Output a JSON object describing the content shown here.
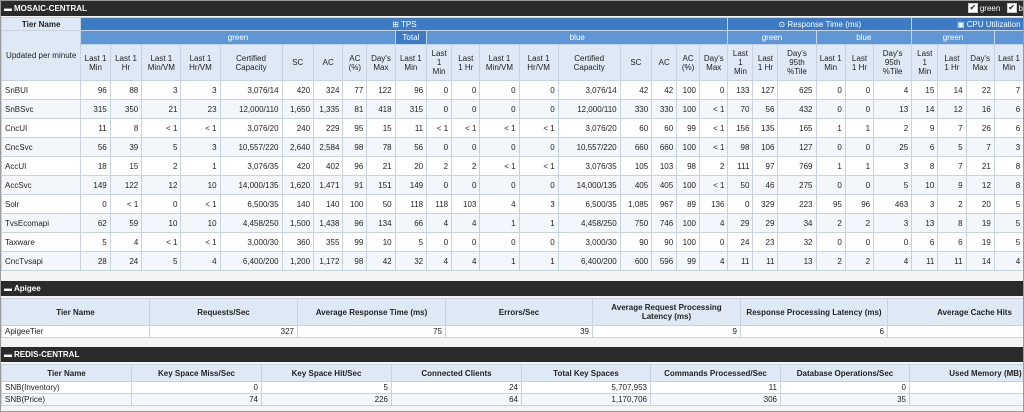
{
  "sections": {
    "mosaic": "MOSAIC-CENTRAL",
    "apigee": "Apigee",
    "redis": "REDIS-CENTRAL"
  },
  "legend": {
    "green": "green",
    "blue": "b"
  },
  "mosaic_table": {
    "tier_name": "Tier Name",
    "updated": "Updated per minute",
    "tps": "TPS",
    "response_time": "Response Time (ms)",
    "cpu": "CPU Utilization (%)",
    "green": "green",
    "total": "Total",
    "blue": "blue",
    "cols": {
      "last1min": "Last 1 Min",
      "last1hr": "Last 1 Hr",
      "last1minvm": "Last 1 Min/VM",
      "last1hrvm": "Last 1 Hr/VM",
      "cert": "Certified Capacity",
      "sc": "SC",
      "ac": "AC",
      "acpct": "AC (%)",
      "daysmax": "Day's Max",
      "days95": "Day's 95th %Tile"
    },
    "rows": [
      {
        "name": "SnBUI",
        "v": [
          "96",
          "88",
          "3",
          "3",
          "3,076/14",
          "420",
          "324",
          "77",
          "122",
          "96",
          "0",
          "0",
          "0",
          "0",
          "3,076/14",
          "42",
          "42",
          "100",
          "0",
          "133",
          "127",
          "625",
          "0",
          "0",
          "4",
          "15",
          "14",
          "22",
          "7",
          "7",
          "4"
        ]
      },
      {
        "name": "SnBSvc",
        "v": [
          "315",
          "350",
          "21",
          "23",
          "12,000/110",
          "1,650",
          "1,335",
          "81",
          "418",
          "315",
          "0",
          "0",
          "0",
          "0",
          "12,000/110",
          "330",
          "330",
          "100",
          "< 1",
          "70",
          "56",
          "432",
          "0",
          "0",
          "13",
          "14",
          "12",
          "16",
          "6",
          "4",
          "1"
        ]
      },
      {
        "name": "CncUI",
        "v": [
          "11",
          "8",
          "< 1",
          "< 1",
          "3,076/20",
          "240",
          "229",
          "95",
          "15",
          "11",
          "< 1",
          "< 1",
          "< 1",
          "< 1",
          "3,076/20",
          "60",
          "60",
          "99",
          "< 1",
          "156",
          "135",
          "165",
          "1",
          "1",
          "2",
          "9",
          "7",
          "26",
          "6",
          "6",
          "2"
        ]
      },
      {
        "name": "CncSvc",
        "v": [
          "56",
          "39",
          "5",
          "3",
          "10,557/220",
          "2,640",
          "2,584",
          "98",
          "78",
          "56",
          "0",
          "0",
          "0",
          "0",
          "10,557/220",
          "660",
          "660",
          "100",
          "< 1",
          "98",
          "106",
          "127",
          "0",
          "0",
          "25",
          "6",
          "5",
          "7",
          "3",
          "3",
          ""
        ]
      },
      {
        "name": "AccUI",
        "v": [
          "18",
          "15",
          "2",
          "1",
          "3,076/35",
          "420",
          "402",
          "96",
          "21",
          "20",
          "2",
          "2",
          "< 1",
          "< 1",
          "3,076/35",
          "105",
          "103",
          "98",
          "2",
          "111",
          "97",
          "769",
          "1",
          "1",
          "3",
          "8",
          "7",
          "21",
          "8",
          "6",
          "8"
        ]
      },
      {
        "name": "AccSvc",
        "v": [
          "149",
          "122",
          "12",
          "10",
          "14,000/135",
          "1,620",
          "1,471",
          "91",
          "151",
          "149",
          "0",
          "0",
          "0",
          "0",
          "14,000/135",
          "405",
          "405",
          "100",
          "< 1",
          "50",
          "46",
          "275",
          "0",
          "0",
          "5",
          "10",
          "9",
          "12",
          "8",
          "6",
          "8"
        ]
      },
      {
        "name": "Solr",
        "v": [
          "0",
          "< 1",
          "0",
          "< 1",
          "6,500/35",
          "140",
          "140",
          "100",
          "50",
          "118",
          "118",
          "103",
          "4",
          "3",
          "6,500/35",
          "1,085",
          "967",
          "89",
          "136",
          "0",
          "329",
          "223",
          "95",
          "96",
          "463",
          "3",
          "2",
          "20",
          "5",
          "6",
          ""
        ]
      },
      {
        "name": "TvsEcomapi",
        "v": [
          "62",
          "59",
          "10",
          "10",
          "4,458/250",
          "1,500",
          "1,438",
          "96",
          "134",
          "66",
          "4",
          "4",
          "1",
          "1",
          "4,458/250",
          "750",
          "746",
          "100",
          "4",
          "29",
          "29",
          "34",
          "2",
          "2",
          "3",
          "13",
          "8",
          "19",
          "5",
          "5",
          ""
        ]
      },
      {
        "name": "Taxware",
        "v": [
          "5",
          "4",
          "< 1",
          "< 1",
          "3,000/30",
          "360",
          "355",
          "99",
          "10",
          "5",
          "0",
          "0",
          "0",
          "0",
          "3,000/30",
          "90",
          "90",
          "100",
          "0",
          "24",
          "23",
          "32",
          "0",
          "0",
          "0",
          "6",
          "6",
          "19",
          "5",
          "5",
          "5"
        ]
      },
      {
        "name": "CncTvsapi",
        "v": [
          "28",
          "24",
          "5",
          "4",
          "6,400/200",
          "1,200",
          "1,172",
          "98",
          "42",
          "32",
          "4",
          "4",
          "1",
          "1",
          "6,400/200",
          "600",
          "596",
          "99",
          "4",
          "11",
          "11",
          "13",
          "2",
          "2",
          "4",
          "11",
          "11",
          "14",
          "4",
          "4",
          ""
        ]
      }
    ]
  },
  "apigee_table": {
    "headers": [
      "Tier Name",
      "Requests/Sec",
      "Average Response Time (ms)",
      "Errors/Sec",
      "Average Request Processing Latency (ms)",
      "Response Processing Latency (ms)",
      "Average Cache Hits"
    ],
    "row": [
      "ApigeeTier",
      "327",
      "75",
      "39",
      "9",
      "6",
      "3"
    ]
  },
  "redis_table": {
    "headers": [
      "Tier Name",
      "Key Space Miss/Sec",
      "Key Space Hit/Sec",
      "Connected Clients",
      "Total Key Spaces",
      "Commands Processed/Sec",
      "Database Operations/Sec",
      "Used Memory (MB)"
    ],
    "rows": [
      [
        "SNB(Inventory)",
        "0",
        "5",
        "24",
        "5,707,953",
        "11",
        "0",
        "2,15"
      ],
      [
        "SNB(Price)",
        "74",
        "226",
        "64",
        "1,170,706",
        "306",
        "35",
        "96"
      ]
    ]
  },
  "colors": {
    "header_dark": "#2b2b2b",
    "col_blue": "#3d7bc4",
    "sub_blue": "#dfe9f5"
  }
}
